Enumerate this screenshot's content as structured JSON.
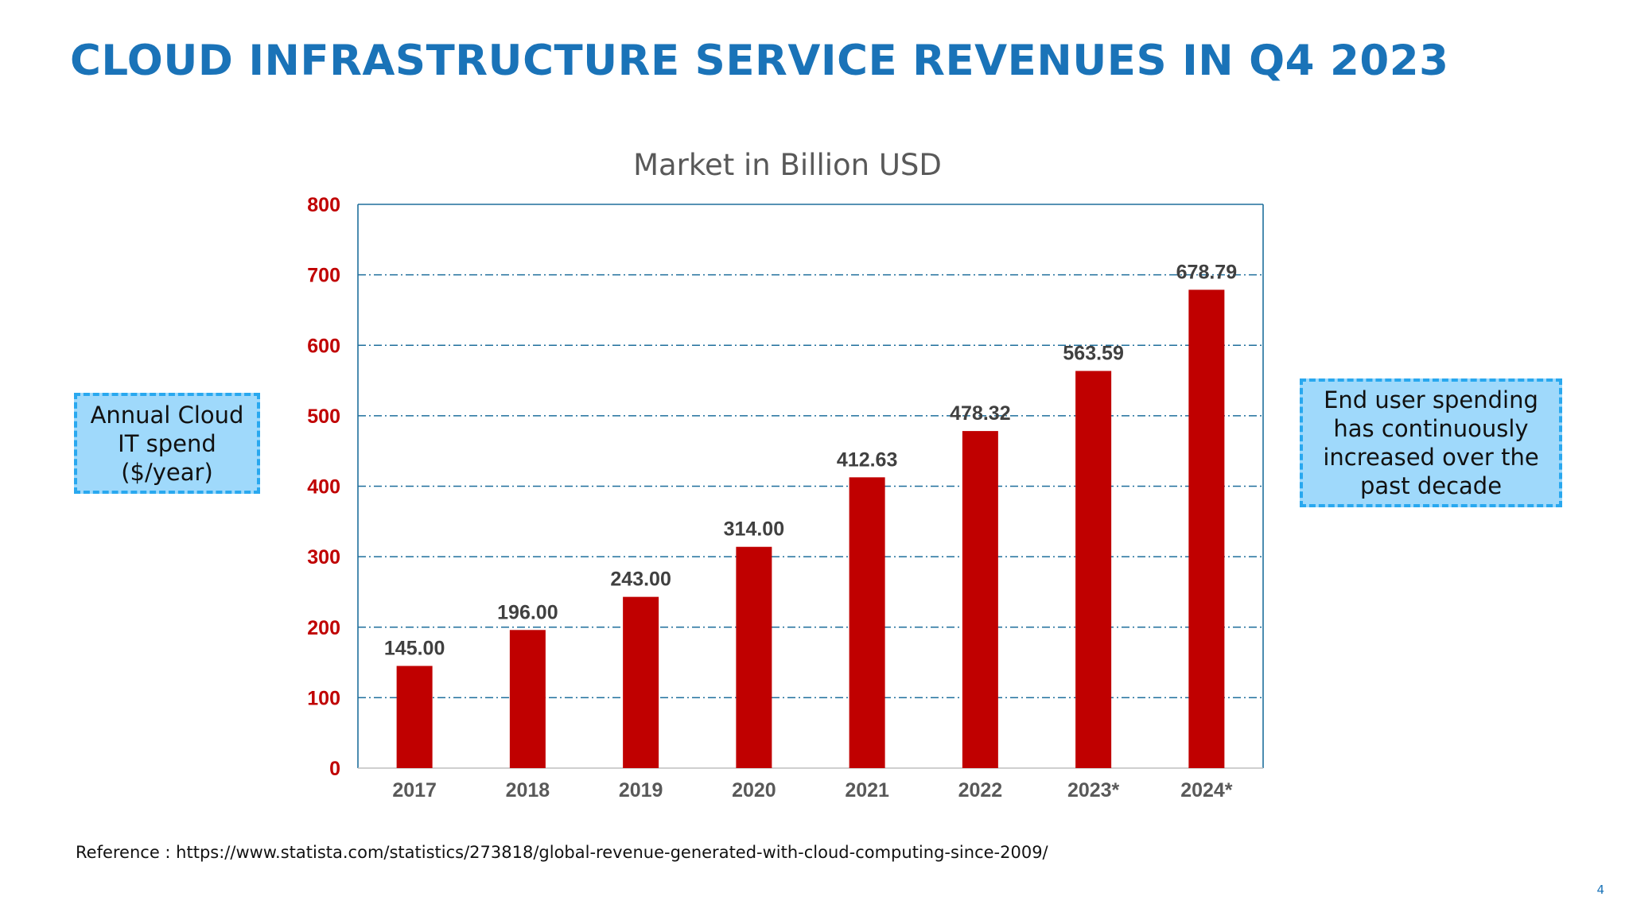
{
  "slide": {
    "title": "CLOUD INFRASTRUCTURE SERVICE REVENUES IN Q4 2023",
    "left_callout": "Annual Cloud IT spend ($/year)",
    "right_callout": "End user spending has continuously increased over the past decade",
    "reference": "Reference : https://www.statista.com/statistics/273818/global-revenue-generated-with-cloud-computing-since-2009/",
    "page_number": "4"
  },
  "colors": {
    "title": "#1a73b8",
    "bar": "#c00000",
    "axis_tick": "#c00000",
    "category_label": "#595959",
    "data_label": "#404040",
    "grid": "#1f6f9c",
    "callout_fill": "#9fd9fb",
    "callout_border": "#29a8ef"
  },
  "chart_data": {
    "type": "bar",
    "title": "Market in Billion USD",
    "categories": [
      "2017",
      "2018",
      "2019",
      "2020",
      "2021",
      "2022",
      "2023*",
      "2024*"
    ],
    "values": [
      145.0,
      196.0,
      243.0,
      314.0,
      412.63,
      478.32,
      563.59,
      678.79
    ],
    "value_labels": [
      "145.00",
      "196.00",
      "243.00",
      "314.00",
      "412.63",
      "478.32",
      "563.59",
      "678.79"
    ],
    "ylim": [
      0,
      800
    ],
    "yticks": [
      0,
      100,
      200,
      300,
      400,
      500,
      600,
      700,
      800
    ],
    "xlabel": "",
    "ylabel": "",
    "grid": true
  }
}
